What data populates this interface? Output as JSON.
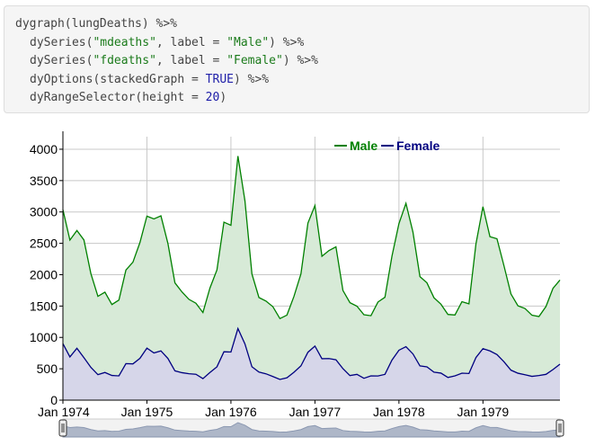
{
  "code": {
    "line1": {
      "fn": "dygraph(lungDeaths) %>%"
    },
    "line2": {
      "a": "dySeries(",
      "s1": "\"mdeaths\"",
      "b": ", label = ",
      "s2": "\"Male\"",
      "c": ") %>%"
    },
    "line3": {
      "a": "dySeries(",
      "s1": "\"fdeaths\"",
      "b": ", label = ",
      "s2": "\"Female\"",
      "c": ") %>%"
    },
    "line4": {
      "a": "dyOptions(stackedGraph = ",
      "v": "TRUE",
      "c": ") %>%"
    },
    "line5": {
      "a": "dyRangeSelector(height = ",
      "v": "20",
      "c": ")"
    }
  },
  "chart_data": {
    "type": "area",
    "stacked": true,
    "x_start": "1974-01",
    "x_tick_labels": [
      "Jan 1974",
      "Jan 1975",
      "Jan 1976",
      "Jan 1977",
      "Jan 1978",
      "Jan 1979"
    ],
    "y_ticks": [
      0,
      500,
      1000,
      1500,
      2000,
      2500,
      3000,
      3500,
      4000
    ],
    "ylim": [
      0,
      4200
    ],
    "legend_position": "top-right",
    "range_selector": true,
    "series": [
      {
        "name": "Female",
        "color": "#000080",
        "fill": "#d6d6e9",
        "values": [
          901,
          689,
          827,
          677,
          522,
          406,
          441,
          393,
          387,
          582,
          578,
          666,
          830,
          752,
          785,
          664,
          467,
          438,
          421,
          412,
          343,
          440,
          531,
          771,
          767,
          1141,
          896,
          532,
          447,
          420,
          376,
          330,
          357,
          445,
          546,
          764,
          862,
          660,
          663,
          643,
          502,
          392,
          411,
          348,
          387,
          385,
          411,
          638,
          796,
          853,
          737,
          546,
          530,
          446,
          431,
          362,
          387,
          430,
          425,
          679,
          821,
          785,
          727,
          612,
          478,
          429,
          405,
          379,
          393,
          411,
          487,
          574
        ]
      },
      {
        "name": "Male",
        "color": "#008000",
        "fill": "#d7ead7",
        "values": [
          2134,
          1863,
          1877,
          1877,
          1492,
          1249,
          1280,
          1131,
          1209,
          1492,
          1621,
          1846,
          2103,
          2137,
          2153,
          1833,
          1403,
          1288,
          1186,
          1133,
          1053,
          1347,
          1545,
          2066,
          2020,
          2750,
          2283,
          1479,
          1189,
          1160,
          1113,
          970,
          999,
          1208,
          1467,
          2059,
          2240,
          1634,
          1722,
          1801,
          1246,
          1162,
          1087,
          1013,
          959,
          1179,
          1229,
          1655,
          2019,
          2284,
          1942,
          1423,
          1340,
          1187,
          1098,
          1004,
          970,
          1140,
          1110,
          1812,
          2263,
          1820,
          1846,
          1531,
          1215,
          1075,
          1056,
          975,
          940,
          1081,
          1294,
          1341
        ]
      }
    ]
  }
}
